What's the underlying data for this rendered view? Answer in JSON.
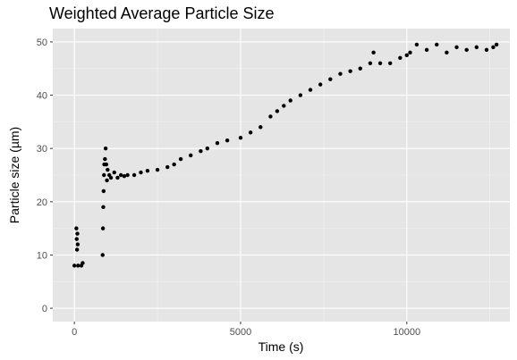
{
  "chart_data": {
    "type": "scatter",
    "title": "Weighted Average Particle Size",
    "xlabel": "Time (s)",
    "ylabel": "Particle size (µm)",
    "xlim": [
      -650,
      13100
    ],
    "ylim": [
      -2.5,
      52.5
    ],
    "x_ticks": [
      0,
      5000,
      10000
    ],
    "x_tick_labels": [
      "0",
      "5000",
      "10000"
    ],
    "y_ticks": [
      0,
      10,
      20,
      30,
      40,
      50
    ],
    "y_tick_labels": [
      "0",
      "10",
      "20",
      "30",
      "40",
      "50"
    ],
    "grid": true,
    "legend": "none",
    "colors": {
      "panel": "#e5e5e5",
      "grid_major": "#ffffff",
      "grid_minor": "#f2f2f2",
      "point": "#000000"
    },
    "x": [
      0,
      60,
      70,
      80,
      90,
      100,
      110,
      210,
      250,
      850,
      860,
      870,
      880,
      890,
      900,
      920,
      940,
      960,
      980,
      1000,
      1050,
      1100,
      1200,
      1300,
      1400,
      1500,
      1600,
      1800,
      2000,
      2200,
      2500,
      2800,
      3000,
      3200,
      3500,
      3800,
      4000,
      4300,
      4600,
      5000,
      5300,
      5600,
      5900,
      6100,
      6300,
      6500,
      6800,
      7100,
      7400,
      7700,
      8000,
      8300,
      8600,
      8900,
      9000,
      9200,
      9500,
      9800,
      10000,
      10100,
      10300,
      10600,
      10900,
      11200,
      11500,
      11800,
      12100,
      12400,
      12600,
      12700
    ],
    "y": [
      8,
      15,
      13,
      11,
      14,
      12,
      8,
      8,
      8.5,
      10,
      15,
      19,
      22,
      25,
      27,
      28,
      30,
      27,
      24,
      26,
      25,
      24.5,
      25.5,
      24.5,
      25,
      24.8,
      25,
      25,
      25.5,
      25.8,
      26,
      26.5,
      27,
      28,
      28.7,
      29.5,
      30,
      31,
      31.5,
      32,
      33,
      34,
      36,
      37,
      38,
      39,
      40,
      41,
      42,
      43,
      44,
      44.5,
      45,
      46,
      48,
      46,
      46,
      47,
      47.5,
      48,
      49.5,
      48.5,
      49.5,
      48,
      49,
      48.5,
      49,
      48.5,
      49,
      49.5
    ]
  }
}
